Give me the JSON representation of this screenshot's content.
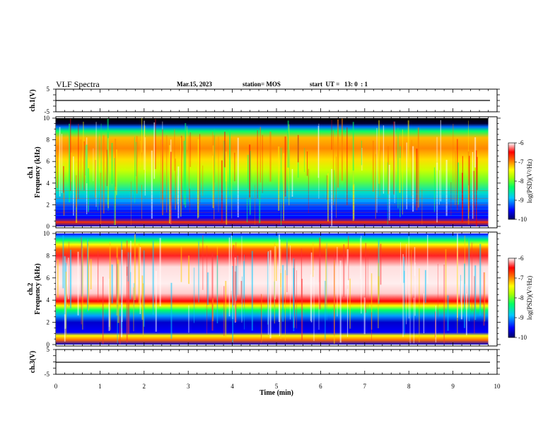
{
  "header": {
    "title": "VLF Spectra",
    "date": "Mar.15, 2023",
    "station": "station= MOS",
    "start": "start  UT =   13: 0  : 1"
  },
  "chart_data": [
    {
      "type": "line",
      "name": "ch1-waveform",
      "ylabel": "ch.1(V)",
      "ylim": [
        -5,
        5
      ],
      "yticks": [
        {
          "v": 5,
          "label": "5"
        },
        {
          "v": -5,
          "label": "-5"
        }
      ],
      "x": [
        0,
        1,
        2,
        3,
        4,
        5,
        6,
        7,
        8,
        9,
        9.8
      ],
      "values": [
        0,
        0,
        0,
        0,
        0,
        0,
        0,
        0,
        0,
        0,
        0
      ]
    },
    {
      "type": "heatmap",
      "name": "ch1-spectrogram",
      "ylabel": "ch.1\nFrequency (kHz)",
      "ylim": [
        0,
        10
      ],
      "yticks": [
        0,
        2,
        4,
        6,
        8,
        10
      ],
      "colorbar": {
        "label": "log(PSD)(V²/Hz)",
        "range": [
          -10,
          -6
        ],
        "ticks": [
          -6,
          -7,
          -8,
          -9,
          -10
        ]
      },
      "summary": "broadband red/yellow emission 4-9 kHz with vertical sferic striations; dark band near 10 kHz; blue/green below 3 kHz with horizontal lines"
    },
    {
      "type": "heatmap",
      "name": "ch2-spectrogram",
      "ylabel": "ch.2\nFrequency (kHz)",
      "ylim": [
        0,
        10
      ],
      "yticks": [
        0,
        2,
        4,
        6,
        8,
        10
      ],
      "colorbar": {
        "label": "log(PSD)(V²/Hz)",
        "range": [
          -10,
          -6
        ],
        "ticks": [
          -6,
          -7,
          -8,
          -9,
          -10
        ]
      },
      "summary": "saturated white/red region 3.5-8.5 kHz, green/blue edges, blue band 1-3 kHz, red/yellow below 1 kHz"
    },
    {
      "type": "line",
      "name": "ch3-waveform",
      "ylabel": "ch.3(V)",
      "ylim": [
        -5,
        5
      ],
      "yticks": [
        {
          "v": 5,
          "label": "5"
        },
        {
          "v": -5,
          "label": "-5"
        }
      ],
      "x": [
        0,
        1,
        2,
        3,
        4,
        5,
        6,
        7,
        8,
        9,
        9.8
      ],
      "values": [
        0,
        0,
        0,
        0,
        0,
        0,
        0,
        0,
        0,
        0,
        0
      ]
    }
  ],
  "xaxis": {
    "label": "Time (min)",
    "range": [
      0,
      10
    ],
    "ticks": [
      0,
      1,
      2,
      3,
      4,
      5,
      6,
      7,
      8,
      9,
      10
    ],
    "data_end": 9.8
  },
  "colormap": [
    "#000066",
    "#0000ff",
    "#00a0ff",
    "#00ffff",
    "#00ff66",
    "#66ff00",
    "#ffff00",
    "#ff9900",
    "#ff0000",
    "#ff6666",
    "#ffffff"
  ]
}
